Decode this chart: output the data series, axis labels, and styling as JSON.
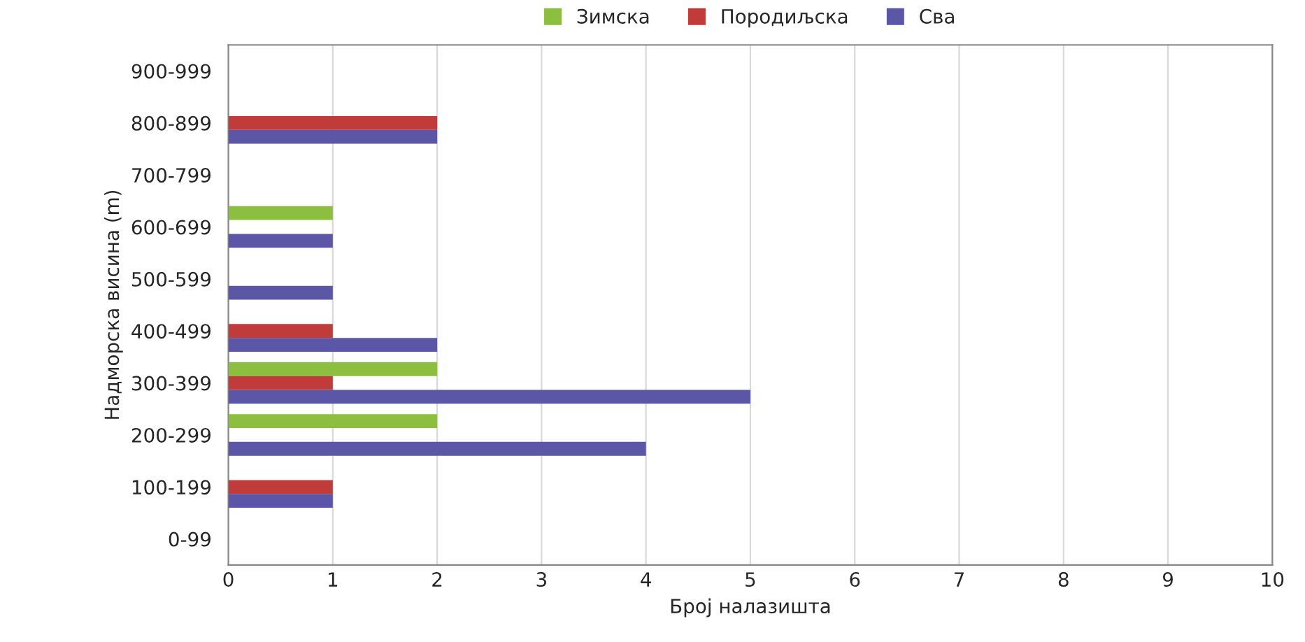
{
  "chart_data": {
    "type": "bar",
    "orientation": "horizontal",
    "xlabel": "Број налазишта",
    "ylabel": "Надморска висина (m)",
    "categories": [
      "900-999",
      "800-899",
      "700-799",
      "600-699",
      "500-599",
      "400-499",
      "300-399",
      "200-299",
      "100-199",
      "0-99"
    ],
    "series": [
      {
        "name": "Зимска",
        "color": "#8cbf3f",
        "values": [
          0,
          0,
          0,
          1,
          0,
          0,
          2,
          2,
          0,
          0
        ]
      },
      {
        "name": "Породиљска",
        "color": "#c23b3b",
        "values": [
          0,
          2,
          0,
          0,
          0,
          1,
          1,
          0,
          1,
          0
        ]
      },
      {
        "name": "Сва",
        "color": "#5b56a6",
        "values": [
          0,
          2,
          0,
          1,
          1,
          2,
          5,
          4,
          1,
          0
        ]
      }
    ],
    "xlim": [
      0,
      10
    ],
    "xticks": [
      0,
      1,
      2,
      3,
      4,
      5,
      6,
      7,
      8,
      9,
      10
    ],
    "grid": "x",
    "legend": "top"
  }
}
